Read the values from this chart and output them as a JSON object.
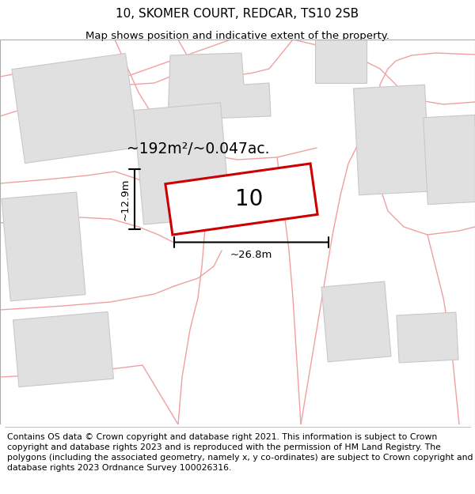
{
  "title_line1": "10, SKOMER COURT, REDCAR, TS10 2SB",
  "title_line2": "Map shows position and indicative extent of the property.",
  "area_label": "~192m²/~0.047ac.",
  "property_number": "10",
  "width_label": "~26.8m",
  "height_label": "~12.9m",
  "footer_text": "Contains OS data © Crown copyright and database right 2021. This information is subject to Crown copyright and database rights 2023 and is reproduced with the permission of HM Land Registry. The polygons (including the associated geometry, namely x, y co-ordinates) are subject to Crown copyright and database rights 2023 Ordnance Survey 100026316.",
  "bg_color": "#ffffff",
  "map_bg": "#ffffff",
  "road_color": "#f0a0a0",
  "building_color": "#e0e0e0",
  "building_edge": "#c8c8c8",
  "property_color": "#ffffff",
  "property_edge": "#cc0000",
  "title_fontsize": 11,
  "subtitle_fontsize": 9.5,
  "footer_fontsize": 7.8
}
